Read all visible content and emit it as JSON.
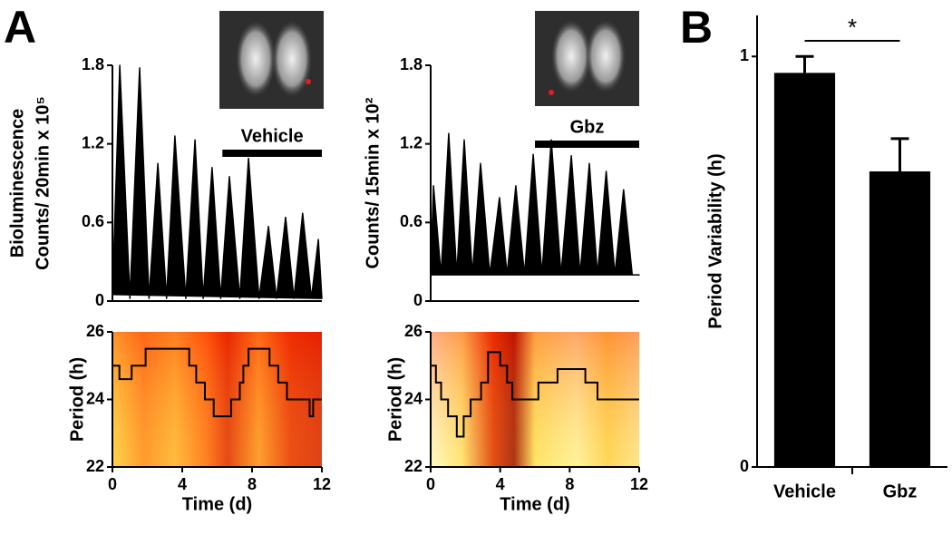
{
  "panel_labels": [
    "A",
    "B"
  ],
  "chart_data": [
    {
      "type": "area",
      "ylabel": [
        "Bioluminescence",
        "Counts/ 20min x 10⁵"
      ],
      "color": "#000000",
      "xlim": [
        0,
        12
      ],
      "ylim": [
        0,
        1.8
      ],
      "yticks": [
        0,
        0.6,
        1.2,
        1.8
      ],
      "x": [
        0,
        0.42,
        1.0,
        1.56,
        2.1,
        2.6,
        3.1,
        3.58,
        4.2,
        4.73,
        5.2,
        5.71,
        6.2,
        6.7,
        7.3,
        7.8,
        8.4,
        8.94,
        9.4,
        9.92,
        10.4,
        10.9,
        11.4,
        11.8,
        12
      ],
      "values": [
        0.05,
        1.8,
        0.02,
        1.78,
        0.02,
        1.05,
        0.02,
        1.26,
        0.02,
        1.23,
        0.02,
        1.02,
        0.02,
        0.95,
        0.02,
        1.09,
        0.02,
        0.57,
        0.02,
        0.64,
        0.02,
        0.67,
        0.02,
        0.47,
        0.02
      ],
      "annotation": {
        "text": "Vehicle",
        "x": [
          6.3,
          12
        ]
      }
    },
    {
      "type": "line",
      "xlabel": "Time (d)",
      "ylabel": [
        "Period (h)"
      ],
      "color": "#000000",
      "heatmap": true,
      "xlim": [
        0,
        12
      ],
      "xticks": [
        0,
        4,
        8,
        12
      ],
      "ylim": [
        22,
        26
      ],
      "yticks": [
        22,
        24,
        26
      ],
      "x": [
        0,
        0.4,
        0.4,
        1.1,
        1.1,
        1.9,
        1.9,
        4.4,
        4.4,
        4.8,
        4.8,
        5.3,
        5.3,
        5.8,
        5.8,
        6.8,
        6.8,
        7.3,
        7.3,
        7.5,
        7.5,
        7.8,
        7.8,
        9.0,
        9.0,
        9.5,
        9.5,
        10,
        10,
        11.3,
        11.3,
        11.5,
        11.5,
        12
      ],
      "values": [
        25,
        25,
        24.6,
        24.6,
        25,
        25,
        25.5,
        25.5,
        25,
        25,
        24.5,
        24.5,
        24,
        24,
        23.5,
        23.5,
        24,
        24,
        24.5,
        24.5,
        25,
        25,
        25.5,
        25.5,
        25,
        25,
        24.5,
        24.5,
        24,
        24,
        23.5,
        23.5,
        24,
        24
      ]
    },
    {
      "type": "area",
      "ylabel": [
        "Counts/ 15min x 10²"
      ],
      "color": "#000000",
      "xlim": [
        0,
        12
      ],
      "ylim": [
        0,
        1.8
      ],
      "yticks": [
        0,
        0.6,
        1.2,
        1.8
      ],
      "x": [
        0,
        0.16,
        0.6,
        1.04,
        1.5,
        1.93,
        2.4,
        2.87,
        3.4,
        3.96,
        4.4,
        4.9,
        5.4,
        5.9,
        6.4,
        6.94,
        7.5,
        8.09,
        8.6,
        9.13,
        9.6,
        10.1,
        10.6,
        11.1,
        11.6,
        12
      ],
      "values": [
        0.2,
        0.88,
        0.2,
        1.28,
        0.2,
        1.23,
        0.2,
        1.05,
        0.2,
        0.79,
        0.2,
        0.88,
        0.2,
        1.12,
        0.2,
        1.23,
        0.2,
        1.11,
        0.2,
        1.05,
        0.2,
        0.99,
        0.2,
        0.85,
        0.2,
        0.2
      ],
      "annotation": {
        "text": "Gbz",
        "x": [
          6.0,
          12
        ]
      }
    },
    {
      "type": "line",
      "xlabel": "Time (d)",
      "ylabel": [
        "Period (h)"
      ],
      "color": "#000000",
      "heatmap": true,
      "xlim": [
        0,
        12
      ],
      "xticks": [
        0,
        4,
        8,
        12
      ],
      "ylim": [
        22,
        26
      ],
      "yticks": [
        22,
        24,
        26
      ],
      "x": [
        0,
        0.3,
        0.3,
        0.6,
        0.6,
        1.0,
        1.0,
        1.5,
        1.5,
        1.9,
        1.9,
        2.3,
        2.3,
        2.9,
        2.9,
        3.3,
        3.3,
        4.0,
        4.0,
        4.4,
        4.4,
        4.7,
        4.7,
        6.2,
        6.2,
        7.3,
        7.3,
        8.9,
        8.9,
        9.6,
        9.6,
        12
      ],
      "values": [
        25,
        25,
        24.5,
        24.5,
        24,
        24,
        23.5,
        23.5,
        22.9,
        22.9,
        23.5,
        23.5,
        24,
        24,
        24.5,
        24.5,
        25.4,
        25.4,
        25,
        25,
        24.5,
        24.5,
        24,
        24,
        24.5,
        24.5,
        24.9,
        24.9,
        24.5,
        24.5,
        24,
        24
      ]
    },
    {
      "type": "bar",
      "ylabel": [
        "Period Variability (h)"
      ],
      "color": "#000000",
      "categories": [
        "Vehicle",
        "Gbz"
      ],
      "values": [
        0.96,
        0.72
      ],
      "errors": [
        0.04,
        0.08
      ],
      "ylim": [
        0,
        1.1
      ],
      "yticks": [
        0,
        1
      ],
      "significance": "*"
    }
  ]
}
